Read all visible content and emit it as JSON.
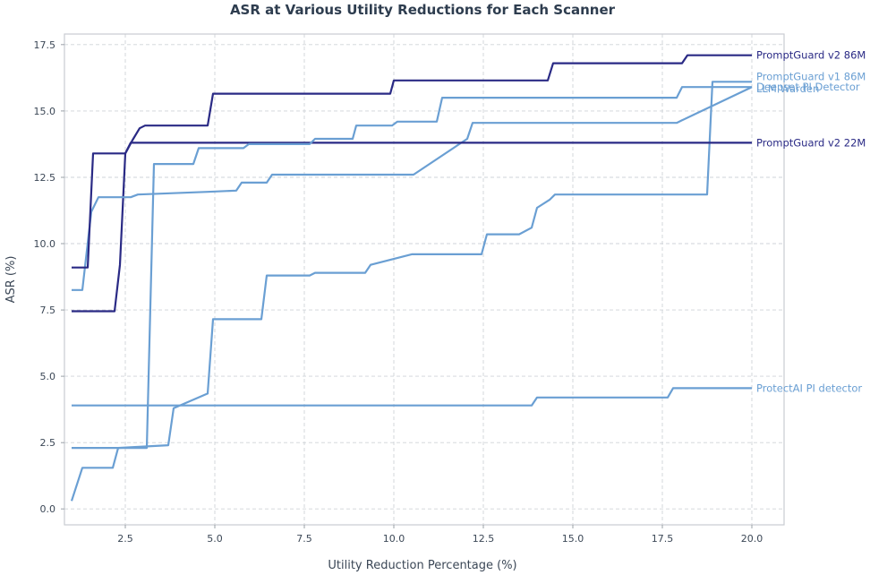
{
  "chart_data": {
    "type": "line",
    "title": "ASR at Various Utility Reductions for Each Scanner",
    "xlabel": "Utility Reduction Percentage (%)",
    "ylabel": "ASR (%)",
    "xlim": [
      0.8,
      20.9
    ],
    "ylim": [
      -0.6,
      17.9
    ],
    "xticks": [
      2.5,
      5.0,
      7.5,
      10.0,
      12.5,
      15.0,
      17.5,
      20.0
    ],
    "xtick_labels": [
      "2.5",
      "5.0",
      "7.5",
      "10.0",
      "12.5",
      "15.0",
      "17.5",
      "20.0"
    ],
    "yticks": [
      0.0,
      2.5,
      5.0,
      7.5,
      10.0,
      12.5,
      15.0,
      17.5
    ],
    "ytick_labels": [
      "0.0",
      "2.5",
      "5.0",
      "7.5",
      "10.0",
      "12.5",
      "15.0",
      "17.5"
    ],
    "grid": true,
    "legend": "labels at line ends (right)",
    "series": [
      {
        "name": "PromptGuard v2 86M",
        "color": "#2a2a85",
        "x": [
          1.0,
          1.5,
          1.65,
          2.2,
          2.35,
          2.5,
          2.7,
          2.9,
          3.05,
          3.2,
          4.8,
          4.95,
          9.9,
          10.0,
          14.3,
          14.45,
          18.05,
          18.2,
          20.0
        ],
        "y": [
          7.45,
          7.45,
          7.45,
          7.45,
          9.2,
          13.4,
          13.9,
          14.35,
          14.45,
          14.45,
          14.45,
          15.65,
          15.65,
          16.15,
          16.15,
          16.8,
          16.8,
          17.1,
          17.1
        ]
      },
      {
        "name": "PromptGuard v1 86M",
        "color": "#6a9fd3",
        "x": [
          1.0,
          1.3,
          1.45,
          2.15,
          2.3,
          3.7,
          3.85,
          4.8,
          4.95,
          6.3,
          6.45,
          7.65,
          7.8,
          9.2,
          9.35,
          10.5,
          10.65,
          12.45,
          12.6,
          13.5,
          13.85,
          14.0,
          14.35,
          14.5,
          18.75,
          18.9,
          20.0
        ],
        "y": [
          0.3,
          1.55,
          1.55,
          1.55,
          2.3,
          2.4,
          3.8,
          4.35,
          7.15,
          7.15,
          8.8,
          8.8,
          8.9,
          8.9,
          9.2,
          9.6,
          9.6,
          9.6,
          10.35,
          10.35,
          10.6,
          11.35,
          11.65,
          11.85,
          11.85,
          16.1,
          16.1
        ]
      },
      {
        "name": "LLM Warden",
        "color": "#6a9fd3",
        "x": [
          1.0,
          1.3,
          1.55,
          1.75,
          2.65,
          2.85,
          4.8,
          5.6,
          5.75,
          6.45,
          6.6,
          10.4,
          10.55,
          12.05,
          12.2,
          17.9,
          18.05,
          20.0
        ],
        "y": [
          8.25,
          8.25,
          11.2,
          11.75,
          11.75,
          11.85,
          11.95,
          12.0,
          12.3,
          12.3,
          12.6,
          12.6,
          12.6,
          13.95,
          14.55,
          14.55,
          14.65,
          15.9
        ]
      },
      {
        "name": "PromptGuard v2 22M",
        "color": "#2a2a85",
        "x": [
          1.0,
          1.45,
          1.6,
          2.5,
          2.65,
          20.0
        ],
        "y": [
          9.1,
          9.1,
          13.4,
          13.4,
          13.8,
          13.8
        ]
      },
      {
        "name": "Deepset PI Detector",
        "color": "#6a9fd3",
        "x": [
          1.0,
          2.3,
          3.1,
          3.3,
          4.4,
          4.55,
          5.8,
          5.95,
          7.65,
          7.8,
          8.85,
          8.95,
          9.95,
          10.1,
          11.2,
          11.35,
          12.15,
          12.3,
          17.9,
          18.05,
          20.0
        ],
        "y": [
          2.3,
          2.3,
          2.3,
          13.0,
          13.0,
          13.6,
          13.6,
          13.75,
          13.75,
          13.95,
          13.95,
          14.45,
          14.45,
          14.6,
          14.6,
          15.5,
          15.5,
          15.5,
          15.5,
          15.9,
          15.9
        ]
      },
      {
        "name": "ProtectAI PI detector",
        "color": "#6a9fd3",
        "x": [
          1.0,
          13.85,
          14.0,
          17.65,
          17.8,
          20.0
        ],
        "y": [
          3.9,
          3.9,
          4.2,
          4.2,
          4.55,
          4.55
        ]
      }
    ]
  }
}
